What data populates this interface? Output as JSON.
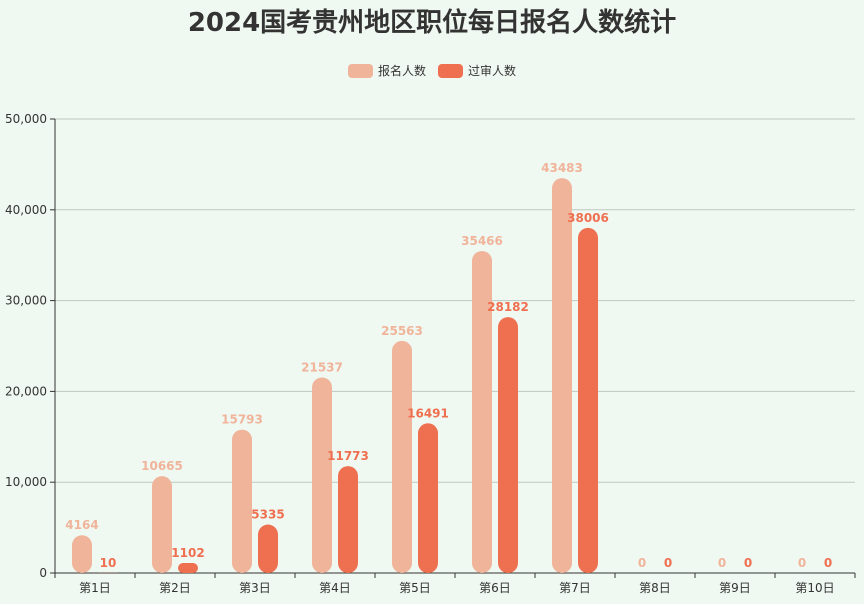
{
  "title": "2024国考贵州地区职位每日报名人数统计",
  "legend": [
    {
      "label": "报名人数",
      "color": "#f0b49a"
    },
    {
      "label": "过审人数",
      "color": "#ef7050"
    }
  ],
  "chart_data": {
    "type": "bar",
    "title": "2024国考贵州地区职位每日报名人数统计",
    "categories": [
      "第1日",
      "第2日",
      "第3日",
      "第4日",
      "第5日",
      "第6日",
      "第7日",
      "第8日",
      "第9日",
      "第10日"
    ],
    "series": [
      {
        "name": "报名人数",
        "color": "#f0b49a",
        "values": [
          4164,
          10665,
          15793,
          21537,
          25563,
          35466,
          43483,
          0,
          0,
          0
        ]
      },
      {
        "name": "过审人数",
        "color": "#ef7050",
        "values": [
          10,
          1102,
          5335,
          11773,
          16491,
          28182,
          38006,
          0,
          0,
          0
        ]
      }
    ],
    "ylim": [
      0,
      50000
    ],
    "yticks": [
      "0",
      "10,000",
      "20,000",
      "30,000",
      "40,000",
      "50,000"
    ],
    "grid": true,
    "legend_position": "top"
  }
}
